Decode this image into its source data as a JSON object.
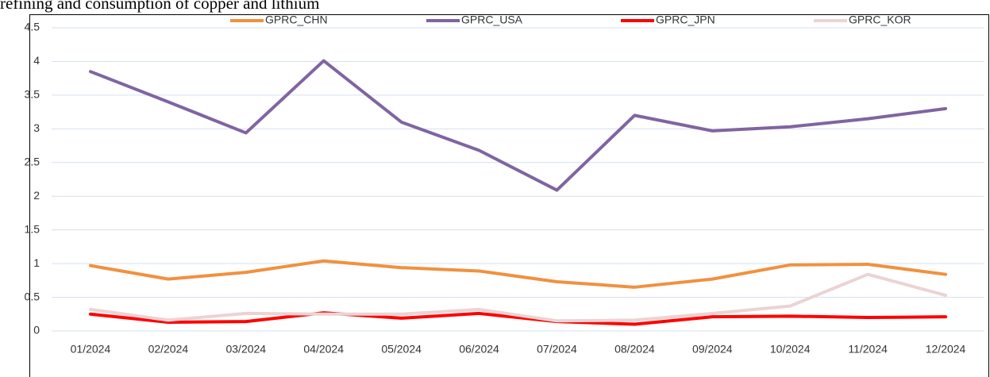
{
  "caption": "refining and consumption of copper and lithium",
  "chart_data": {
    "type": "line",
    "categories": [
      "01/2024",
      "02/2024",
      "03/2024",
      "04/2024",
      "05/2024",
      "06/2024",
      "07/2024",
      "08/2024",
      "09/2024",
      "10/2024",
      "11/2024",
      "12/2024"
    ],
    "series": [
      {
        "name": "GPRC_CHN",
        "color": "#f0913f",
        "values": [
          0.97,
          0.77,
          0.87,
          1.04,
          0.94,
          0.89,
          0.73,
          0.65,
          0.77,
          0.98,
          0.99,
          0.84
        ]
      },
      {
        "name": "GPRC_USA",
        "color": "#8064a2",
        "values": [
          3.85,
          3.4,
          2.94,
          4.01,
          3.1,
          2.68,
          2.09,
          3.2,
          2.97,
          3.03,
          3.15,
          3.3
        ]
      },
      {
        "name": "GPRC_JPN",
        "color": "#ff0000",
        "values": [
          0.25,
          0.13,
          0.14,
          0.27,
          0.19,
          0.26,
          0.14,
          0.1,
          0.21,
          0.22,
          0.2,
          0.21
        ]
      },
      {
        "name": "GPRC_KOR",
        "color": "#ecd3d3",
        "values": [
          0.32,
          0.16,
          0.26,
          0.25,
          0.25,
          0.32,
          0.15,
          0.16,
          0.26,
          0.37,
          0.84,
          0.53
        ]
      }
    ],
    "ylim": [
      0,
      4.5
    ],
    "yticks": [
      0,
      0.5,
      1,
      1.5,
      2,
      2.5,
      3,
      3.5,
      4,
      4.5
    ],
    "grid": true,
    "legend": "top"
  }
}
